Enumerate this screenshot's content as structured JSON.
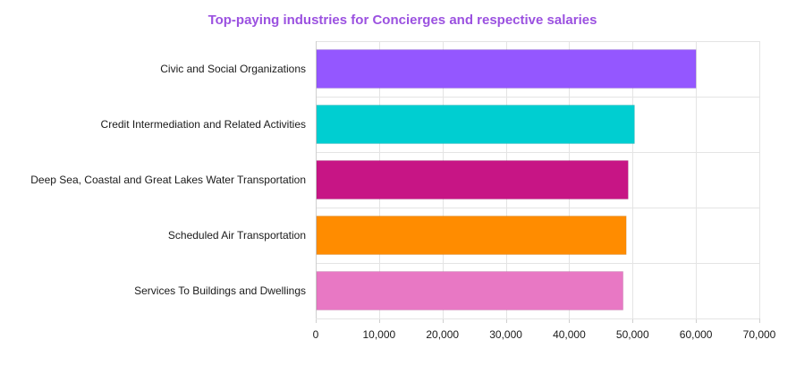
{
  "chart_data": {
    "type": "bar",
    "orientation": "horizontal",
    "title": "Top-paying industries for Concierges and respective salaries",
    "title_color": "#9b51e0",
    "categories": [
      "Civic and Social Organizations",
      "Credit Intermediation and Related Activities",
      "Deep Sea, Coastal and Great Lakes Water Transportation",
      "Scheduled Air Transportation",
      "Services To Buildings and Dwellings"
    ],
    "values": [
      60000,
      50300,
      49300,
      49000,
      48500
    ],
    "colors": [
      "#9457ff",
      "#00ced1",
      "#c71585",
      "#ff8c00",
      "#e878c4"
    ],
    "xlim": [
      0,
      70000
    ],
    "xticks": [
      0,
      10000,
      20000,
      30000,
      40000,
      50000,
      60000,
      70000
    ],
    "xtick_labels": [
      "0",
      "10,000",
      "20,000",
      "30,000",
      "40,000",
      "50,000",
      "60,000",
      "70,000"
    ],
    "xlabel": "",
    "ylabel": "",
    "grid": true,
    "legend": false
  }
}
